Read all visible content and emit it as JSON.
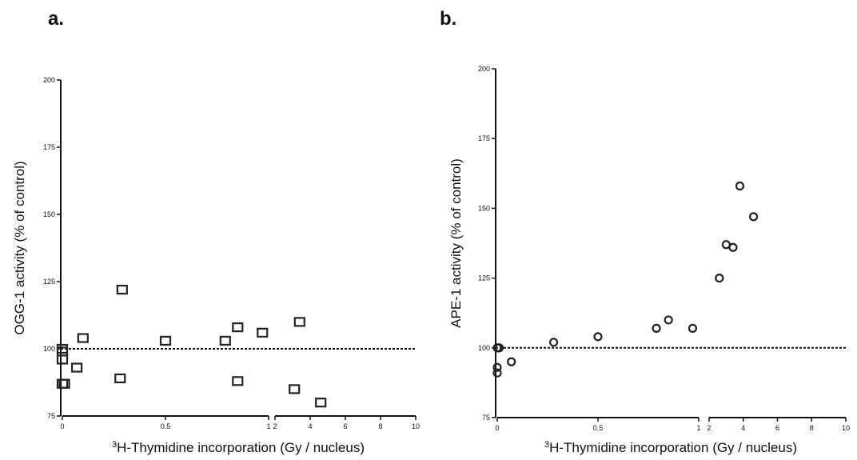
{
  "panels": [
    {
      "label": "a."
    },
    {
      "label": "b."
    }
  ],
  "chart_data": [
    {
      "type": "scatter",
      "marker": "square",
      "ylabel": "OGG-1 activity (% of control)",
      "xlabel_superscript": "3",
      "xlabel": "H-Thymidine incorporation (Gy / nucleus)",
      "ylim": [
        75,
        200
      ],
      "yticks": [
        "75",
        "100",
        "125",
        "150",
        "175",
        "200"
      ],
      "x_segments": [
        {
          "range": [
            0,
            1
          ],
          "ticks": [
            "0",
            "0.5",
            "1"
          ]
        },
        {
          "range": [
            2,
            10
          ],
          "ticks": [
            "2",
            "4",
            "6",
            "8",
            "10"
          ]
        }
      ],
      "reference_line": 100,
      "points": [
        {
          "x": 0,
          "y": 100
        },
        {
          "x": 0,
          "y": 99
        },
        {
          "x": 0,
          "y": 96
        },
        {
          "x": 0,
          "y": 87
        },
        {
          "x": 0.01,
          "y": 87
        },
        {
          "x": 0.07,
          "y": 93
        },
        {
          "x": 0.1,
          "y": 104
        },
        {
          "x": 0.28,
          "y": 89
        },
        {
          "x": 0.29,
          "y": 122
        },
        {
          "x": 0.5,
          "y": 103
        },
        {
          "x": 0.79,
          "y": 103
        },
        {
          "x": 0.85,
          "y": 108
        },
        {
          "x": 0.85,
          "y": 88
        },
        {
          "x": 0.97,
          "y": 106
        },
        {
          "x": 3.1,
          "y": 85
        },
        {
          "x": 3.4,
          "y": 110
        },
        {
          "x": 4.6,
          "y": 80
        }
      ]
    },
    {
      "type": "scatter",
      "marker": "circle",
      "ylabel": "APE-1 activity (% of control)",
      "xlabel_superscript": "3",
      "xlabel": "H-Thymidine incorporation (Gy / nucleus)",
      "ylim": [
        75,
        200
      ],
      "yticks": [
        "75",
        "100",
        "125",
        "150",
        "175",
        "200"
      ],
      "x_segments": [
        {
          "range": [
            0,
            1
          ],
          "ticks": [
            "0",
            "0.5",
            "1"
          ]
        },
        {
          "range": [
            2,
            10
          ],
          "ticks": [
            "2",
            "4",
            "6",
            "8",
            "10"
          ]
        }
      ],
      "reference_line": 100,
      "points": [
        {
          "x": 0,
          "y": 100
        },
        {
          "x": 0.005,
          "y": 100
        },
        {
          "x": 0.01,
          "y": 100
        },
        {
          "x": 0,
          "y": 93
        },
        {
          "x": 0,
          "y": 91
        },
        {
          "x": 0.07,
          "y": 95
        },
        {
          "x": 0.28,
          "y": 102
        },
        {
          "x": 0.5,
          "y": 104
        },
        {
          "x": 0.79,
          "y": 107
        },
        {
          "x": 0.85,
          "y": 110
        },
        {
          "x": 0.97,
          "y": 107
        },
        {
          "x": 2.6,
          "y": 125
        },
        {
          "x": 3.0,
          "y": 137
        },
        {
          "x": 3.4,
          "y": 136
        },
        {
          "x": 3.8,
          "y": 158
        },
        {
          "x": 4.6,
          "y": 147
        }
      ]
    }
  ]
}
